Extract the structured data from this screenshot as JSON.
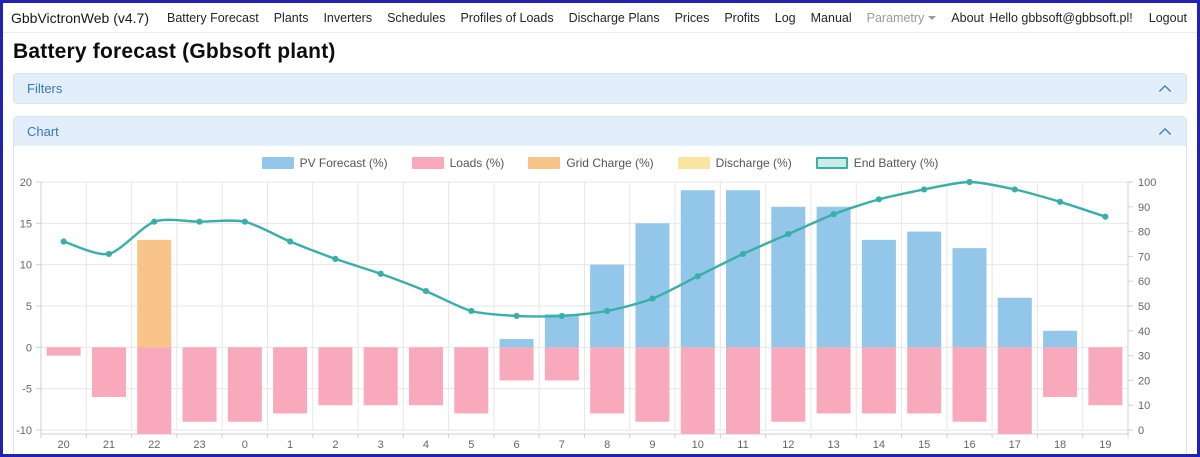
{
  "nav": {
    "brand": "GbbVictronWeb (v4.7)",
    "items": [
      {
        "label": "Battery Forecast"
      },
      {
        "label": "Plants"
      },
      {
        "label": "Inverters"
      },
      {
        "label": "Schedules"
      },
      {
        "label": "Profiles of Loads"
      },
      {
        "label": "Discharge Plans"
      },
      {
        "label": "Prices"
      },
      {
        "label": "Profits"
      },
      {
        "label": "Log"
      },
      {
        "label": "Manual"
      },
      {
        "label": "Parametry",
        "muted": true,
        "caret": true
      },
      {
        "label": "About"
      }
    ],
    "greeting": "Hello gbbsoft@gbbsoft.pl!",
    "logout_label": "Logout"
  },
  "page_title": "Battery forecast (Gbbsoft plant)",
  "panels": {
    "filters": {
      "title": "Filters"
    },
    "chart": {
      "title": "Chart"
    }
  },
  "chart_data": {
    "type": "bar",
    "note": "combo chart: 4 bar series on left axis, 1 line series on right axis",
    "categories": [
      "20",
      "21",
      "22",
      "23",
      "0",
      "1",
      "2",
      "3",
      "4",
      "5",
      "6",
      "7",
      "8",
      "9",
      "10",
      "11",
      "12",
      "13",
      "14",
      "15",
      "16",
      "17",
      "18",
      "19"
    ],
    "series": [
      {
        "name": "PV Forecast (%)",
        "kind": "bar",
        "axis": "left",
        "color": "#92c7e9",
        "border": "#64aede",
        "values": [
          0,
          0,
          0,
          0,
          0,
          0,
          0,
          0,
          0,
          0,
          1,
          4,
          10,
          15,
          19,
          19,
          17,
          17,
          13,
          14,
          12,
          6,
          2,
          0
        ]
      },
      {
        "name": "Loads (%)",
        "kind": "bar",
        "axis": "left",
        "color": "#f9a9bc",
        "border": "#f480a3",
        "values": [
          -1,
          -6,
          -10,
          -9,
          -9,
          -8,
          -7,
          -7,
          -7,
          -8,
          -4,
          -4,
          -8,
          -9,
          -10,
          -10,
          -9,
          -8,
          -8,
          -8,
          -9,
          -10,
          -6,
          -7
        ]
      },
      {
        "name": "Grid Charge (%)",
        "kind": "bar",
        "axis": "left",
        "color": "#f9c489",
        "border": "#f2a457",
        "values": [
          0,
          0,
          13,
          0,
          0,
          0,
          0,
          0,
          0,
          0,
          0,
          0,
          0,
          0,
          0,
          0,
          0,
          0,
          0,
          0,
          0,
          0,
          0,
          0
        ]
      },
      {
        "name": "Discharge (%)",
        "kind": "bar",
        "axis": "left",
        "color": "#fbe3a2",
        "border": "#f3cf6d",
        "values": [
          0,
          0,
          0,
          0,
          0,
          0,
          0,
          0,
          0,
          0,
          0,
          0,
          0,
          0,
          0,
          0,
          0,
          0,
          0,
          0,
          0,
          0,
          0,
          0
        ]
      },
      {
        "name": "End Battery (%)",
        "kind": "line",
        "axis": "right",
        "color": "#38afa8",
        "fill": "#c9ece8",
        "values": [
          76,
          71,
          84,
          84,
          84,
          76,
          69,
          63,
          56,
          48,
          46,
          46,
          48,
          53,
          62,
          71,
          79,
          87,
          93,
          97,
          100,
          97,
          92,
          86
        ]
      }
    ],
    "left_axis": {
      "min": -10,
      "max": 20,
      "ticks": [
        20,
        15,
        10,
        5,
        0,
        -5,
        -10
      ]
    },
    "right_axis": {
      "min": 0,
      "max": 100,
      "ticks": [
        100,
        90,
        80,
        70,
        60,
        50,
        40,
        30,
        20,
        10,
        0
      ]
    },
    "legend_position": "top",
    "grid": true,
    "title": ""
  },
  "colors": {
    "window_border": "#2121b2",
    "panel_header_bg": "#e2eefa",
    "panel_header_text": "#3578b8",
    "grid_line": "#e7e7e7",
    "axis_line": "#cfcfcf",
    "tick_text": "#666666"
  }
}
